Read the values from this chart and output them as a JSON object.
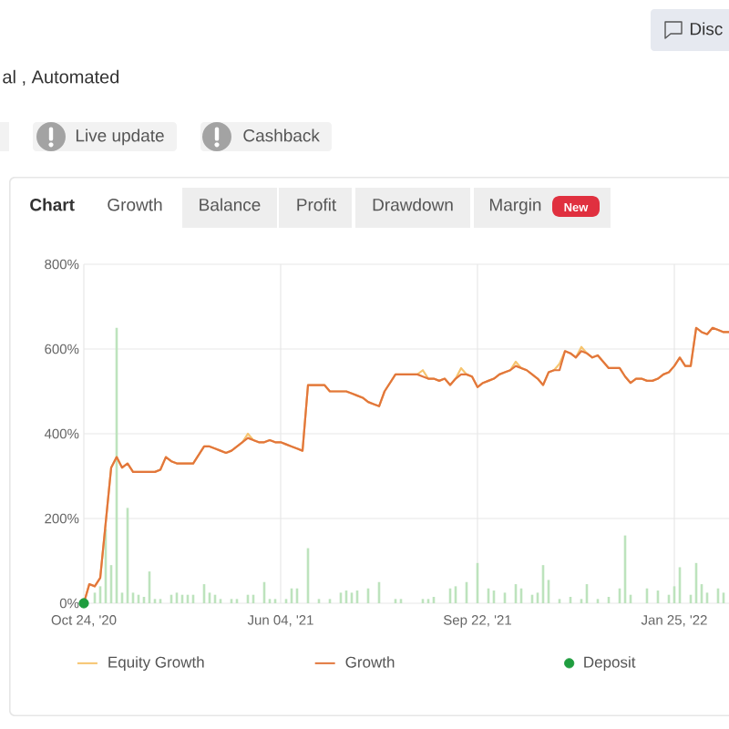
{
  "chart_data": {
    "type": "line",
    "annotations": [
      "Disc",
      "al , Automated",
      "Live update",
      "Cashback",
      "Chart",
      "Growth",
      "Balance",
      "Profit",
      "Drawdown",
      "Margin",
      "New"
    ],
    "categories": [
      "Oct 24, '20",
      null,
      null,
      null,
      null,
      null,
      null,
      null,
      null,
      null,
      null,
      null,
      null,
      null,
      null,
      null,
      null,
      null,
      null,
      null,
      null,
      null,
      null,
      null,
      null,
      null,
      null,
      null,
      null,
      null,
      null,
      null,
      null,
      null,
      null,
      null,
      "Jun 04, '21",
      null,
      null,
      null,
      null,
      null,
      null,
      null,
      null,
      null,
      null,
      null,
      null,
      null,
      null,
      null,
      null,
      null,
      null,
      null,
      null,
      null,
      null,
      null,
      null,
      null,
      null,
      null,
      null,
      null,
      null,
      null,
      null,
      null,
      null,
      null,
      "Sep 22, '21",
      null,
      null,
      null,
      null,
      null,
      null,
      null,
      null,
      null,
      null,
      null,
      null,
      null,
      null,
      null,
      null,
      null,
      null,
      null,
      null,
      null,
      null,
      null,
      null,
      null,
      null,
      null,
      null,
      null,
      null,
      null,
      null,
      null,
      null,
      null,
      "Jan 25, '22",
      null,
      null,
      null,
      null,
      null,
      null,
      null,
      null,
      null,
      null
    ],
    "ylim": [
      0,
      800
    ],
    "yticks": [
      {
        "value": 0,
        "label": "0%"
      },
      {
        "value": 200,
        "label": "200%"
      },
      {
        "value": 400,
        "label": "400%"
      },
      {
        "value": 600,
        "label": "600%"
      },
      {
        "value": 800,
        "label": "800%"
      }
    ],
    "grid": true,
    "legend": "bottom",
    "series": [
      {
        "type": "bar",
        "color": "#bde3bd",
        "values": [
          null,
          null,
          25,
          40,
          175,
          90,
          650,
          25,
          225,
          25,
          20,
          15,
          75,
          10,
          10,
          null,
          20,
          25,
          20,
          20,
          20,
          null,
          45,
          25,
          20,
          10,
          null,
          10,
          10,
          null,
          20,
          20,
          null,
          50,
          10,
          10,
          null,
          10,
          35,
          35,
          null,
          130,
          null,
          10,
          null,
          10,
          null,
          25,
          30,
          25,
          30,
          null,
          35,
          null,
          50,
          null,
          null,
          10,
          10,
          null,
          null,
          null,
          10,
          10,
          15,
          null,
          null,
          35,
          40,
          null,
          50,
          null,
          95,
          null,
          35,
          30,
          null,
          25,
          null,
          45,
          35,
          null,
          20,
          25,
          90,
          55,
          null,
          10,
          null,
          15,
          null,
          10,
          45,
          null,
          10,
          null,
          15,
          null,
          35,
          160,
          20,
          null,
          null,
          35,
          null,
          30,
          null,
          20,
          40,
          85,
          null,
          20,
          95,
          45,
          25,
          null,
          35,
          25,
          null
        ]
      },
      {
        "name": "Equity Growth",
        "color": "#f6c46e",
        "marker": "none",
        "values": [
          0,
          45,
          40,
          60,
          190,
          320,
          345,
          320,
          330,
          310,
          310,
          310,
          310,
          310,
          315,
          345,
          335,
          330,
          330,
          330,
          330,
          350,
          370,
          370,
          365,
          360,
          355,
          360,
          370,
          380,
          400,
          385,
          380,
          380,
          385,
          380,
          380,
          375,
          370,
          365,
          360,
          515,
          515,
          515,
          515,
          500,
          500,
          500,
          500,
          495,
          490,
          485,
          475,
          470,
          465,
          500,
          520,
          540,
          540,
          540,
          540,
          540,
          550,
          530,
          530,
          525,
          530,
          515,
          530,
          555,
          540,
          535,
          510,
          520,
          525,
          530,
          540,
          545,
          550,
          570,
          555,
          550,
          540,
          530,
          515,
          545,
          550,
          565,
          595,
          590,
          580,
          605,
          590,
          580,
          585,
          570,
          555,
          555,
          555,
          535,
          520,
          530,
          530,
          525,
          525,
          530,
          540,
          545,
          560,
          580,
          560,
          560,
          650,
          640,
          635,
          650,
          645,
          640,
          640
        ]
      },
      {
        "name": "Growth",
        "color": "#e2763c",
        "marker": "none",
        "values": [
          0,
          45,
          40,
          60,
          190,
          320,
          345,
          320,
          330,
          310,
          310,
          310,
          310,
          310,
          315,
          345,
          335,
          330,
          330,
          330,
          330,
          350,
          370,
          370,
          365,
          360,
          355,
          360,
          370,
          380,
          390,
          385,
          380,
          380,
          385,
          380,
          380,
          375,
          370,
          365,
          360,
          515,
          515,
          515,
          515,
          500,
          500,
          500,
          500,
          495,
          490,
          485,
          475,
          470,
          465,
          500,
          520,
          540,
          540,
          540,
          540,
          540,
          535,
          530,
          530,
          525,
          530,
          515,
          530,
          540,
          540,
          535,
          510,
          520,
          525,
          530,
          540,
          545,
          550,
          560,
          555,
          550,
          540,
          530,
          515,
          545,
          550,
          550,
          595,
          590,
          580,
          595,
          590,
          580,
          585,
          570,
          555,
          555,
          555,
          535,
          520,
          530,
          530,
          525,
          525,
          530,
          540,
          545,
          560,
          580,
          560,
          560,
          650,
          640,
          635,
          650,
          645,
          640,
          640
        ]
      },
      {
        "name": "Deposit",
        "type": "scatter",
        "color": "#1f9d3f",
        "marker": "circle",
        "values": [
          0,
          null,
          null,
          null,
          null,
          null,
          null,
          null,
          null,
          null,
          null,
          null,
          null,
          null,
          null,
          null,
          null,
          null,
          null,
          null,
          null,
          null,
          null,
          null,
          null,
          null,
          null,
          null,
          null,
          null,
          null,
          null,
          null,
          null,
          null,
          null,
          null,
          null,
          null,
          null,
          null,
          null,
          null,
          null,
          null,
          null,
          null,
          null,
          null,
          null,
          null,
          null,
          null,
          null,
          null,
          null,
          null,
          null,
          null,
          null,
          null,
          null,
          null,
          null,
          null,
          null,
          null,
          null,
          null,
          null,
          null,
          null,
          null,
          null,
          null,
          null,
          null,
          null,
          null,
          null,
          null,
          null,
          null,
          null,
          null,
          null,
          null,
          null,
          null,
          null,
          null,
          null,
          null,
          null,
          null,
          null,
          null,
          null,
          null,
          null,
          null,
          null,
          null,
          null,
          null,
          null,
          null,
          null,
          null,
          null,
          null,
          null,
          null,
          null,
          null,
          null,
          null,
          null,
          null
        ]
      }
    ]
  }
}
